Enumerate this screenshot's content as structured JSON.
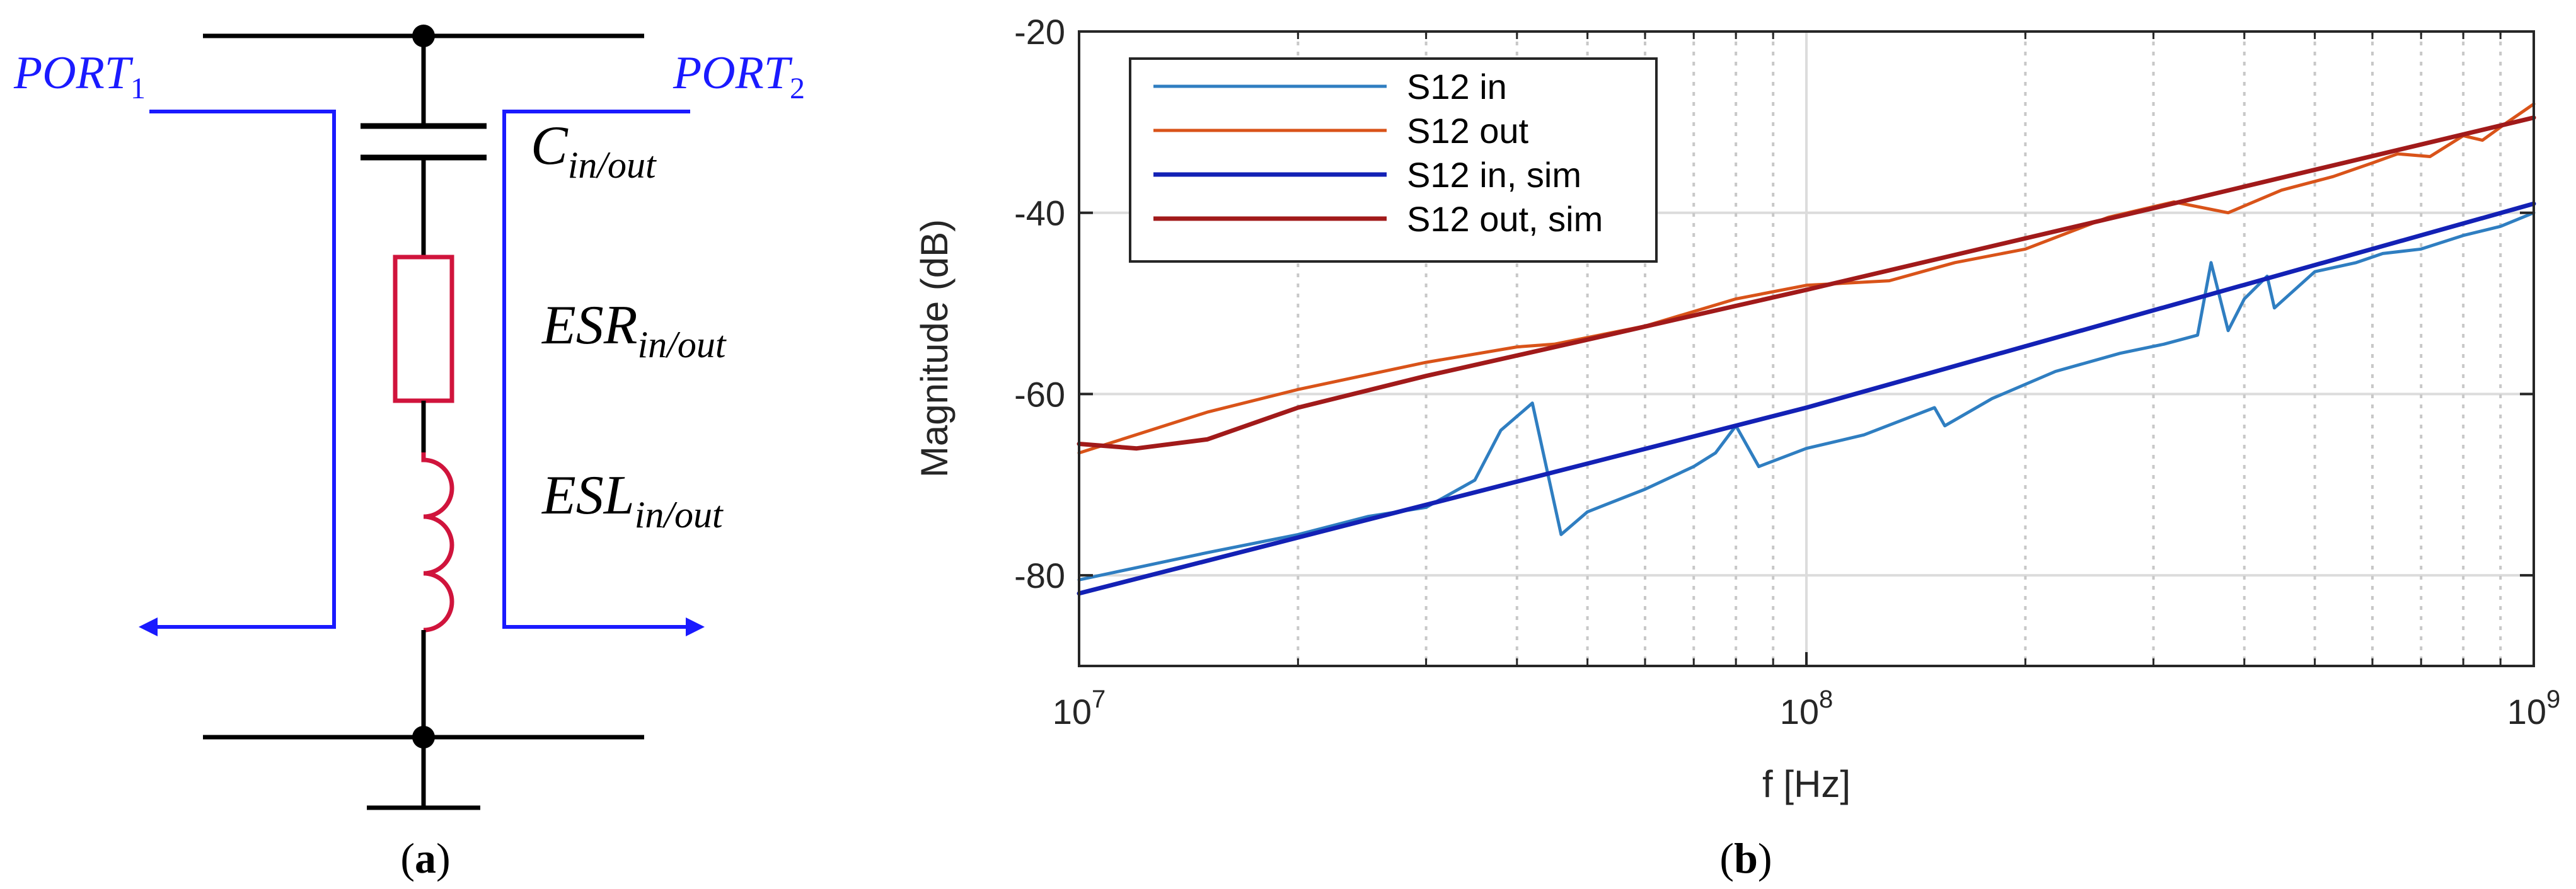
{
  "panel_a": {
    "caption_open": "(",
    "caption_letter": "a",
    "caption_close": ")",
    "port1": {
      "base": "PORT",
      "sub": "1"
    },
    "port2": {
      "base": "PORT",
      "sub": "2"
    },
    "cap_label": {
      "base": "C",
      "sub": "in/out"
    },
    "esr_label": {
      "base": "ESR",
      "sub": "in/out"
    },
    "esl_label": {
      "base": "ESL",
      "sub": "in/out"
    },
    "colors": {
      "port": "#1a1aff",
      "component": "#d0143c",
      "wire": "#000000"
    }
  },
  "panel_b": {
    "caption_open": "(",
    "caption_letter": "b",
    "caption_close": ")"
  },
  "chart_data": {
    "type": "line",
    "xscale": "log",
    "xlabel": "f [Hz]",
    "ylabel": "Magnitude (dB)",
    "xlim": [
      10000000,
      1000000000
    ],
    "ylim": [
      -90,
      -20
    ],
    "grid": true,
    "legend_position": "top-left",
    "y_ticks": [
      {
        "value": -20,
        "label": "-20"
      },
      {
        "value": -40,
        "label": "-40"
      },
      {
        "value": -60,
        "label": "-60"
      },
      {
        "value": -80,
        "label": "-80"
      }
    ],
    "x_ticks": [
      {
        "value": 10000000,
        "base": "10",
        "exp": "7"
      },
      {
        "value": 100000000,
        "base": "10",
        "exp": "8"
      },
      {
        "value": 1000000000,
        "base": "10",
        "exp": "9"
      }
    ],
    "series": [
      {
        "name": "S12 in",
        "color": "#2f7ec1",
        "points": [
          [
            10000000.0,
            -80.5
          ],
          [
            15000000.0,
            -77.5
          ],
          [
            20000000.0,
            -75.5
          ],
          [
            25000000.0,
            -73.5
          ],
          [
            30000000.0,
            -72.5
          ],
          [
            35000000.0,
            -69.5
          ],
          [
            38000000.0,
            -64.0
          ],
          [
            42000000.0,
            -61.0
          ],
          [
            46000000.0,
            -75.5
          ],
          [
            50000000.0,
            -73.0
          ],
          [
            60000000.0,
            -70.5
          ],
          [
            70000000.0,
            -68.0
          ],
          [
            75000000.0,
            -66.5
          ],
          [
            80000000.0,
            -63.5
          ],
          [
            86000000.0,
            -68.0
          ],
          [
            100000000.0,
            -66.0
          ],
          [
            120000000.0,
            -64.5
          ],
          [
            150000000.0,
            -61.5
          ],
          [
            155000000.0,
            -63.5
          ],
          [
            180000000.0,
            -60.5
          ],
          [
            220000000.0,
            -57.5
          ],
          [
            270000000.0,
            -55.5
          ],
          [
            310000000.0,
            -54.5
          ],
          [
            345000000.0,
            -53.5
          ],
          [
            360000000.0,
            -45.5
          ],
          [
            380000000.0,
            -53.0
          ],
          [
            400000000.0,
            -49.5
          ],
          [
            430000000.0,
            -47.0
          ],
          [
            440000000.0,
            -50.5
          ],
          [
            500000000.0,
            -46.5
          ],
          [
            570000000.0,
            -45.5
          ],
          [
            620000000.0,
            -44.5
          ],
          [
            700000000.0,
            -44.0
          ],
          [
            800000000.0,
            -42.5
          ],
          [
            900000000.0,
            -41.5
          ],
          [
            1000000000.0,
            -40.0
          ]
        ]
      },
      {
        "name": "S12 out",
        "color": "#d95319",
        "points": [
          [
            10000000.0,
            -66.5
          ],
          [
            15000000.0,
            -62.0
          ],
          [
            20000000.0,
            -59.5
          ],
          [
            30000000.0,
            -56.5
          ],
          [
            40000000.0,
            -54.8
          ],
          [
            45000000.0,
            -54.5
          ],
          [
            60000000.0,
            -52.5
          ],
          [
            80000000.0,
            -49.5
          ],
          [
            100000000.0,
            -48.0
          ],
          [
            130000000.0,
            -47.5
          ],
          [
            160000000.0,
            -45.5
          ],
          [
            200000000.0,
            -44.0
          ],
          [
            260000000.0,
            -40.5
          ],
          [
            320000000.0,
            -38.8
          ],
          [
            380000000.0,
            -40.0
          ],
          [
            450000000.0,
            -37.5
          ],
          [
            530000000.0,
            -36.0
          ],
          [
            600000000.0,
            -34.5
          ],
          [
            650000000.0,
            -33.5
          ],
          [
            720000000.0,
            -33.8
          ],
          [
            800000000.0,
            -31.5
          ],
          [
            850000000.0,
            -32.0
          ],
          [
            920000000.0,
            -30.0
          ],
          [
            1000000000.0,
            -28.0
          ]
        ]
      },
      {
        "name": "S12 in, sim",
        "color": "#1321b5",
        "points": [
          [
            10000000.0,
            -82.0
          ],
          [
            100000000.0,
            -61.5
          ],
          [
            1000000000.0,
            -39.0
          ]
        ]
      },
      {
        "name": "S12 out, sim",
        "color": "#a11a1a",
        "points": [
          [
            10000000.0,
            -65.5
          ],
          [
            12000000.0,
            -66.0
          ],
          [
            15000000.0,
            -65.0
          ],
          [
            20000000.0,
            -61.5
          ],
          [
            30000000.0,
            -58.0
          ],
          [
            50000000.0,
            -54.0
          ],
          [
            100000000.0,
            -48.5
          ],
          [
            300000000.0,
            -39.5
          ],
          [
            1000000000.0,
            -29.5
          ]
        ]
      }
    ]
  }
}
